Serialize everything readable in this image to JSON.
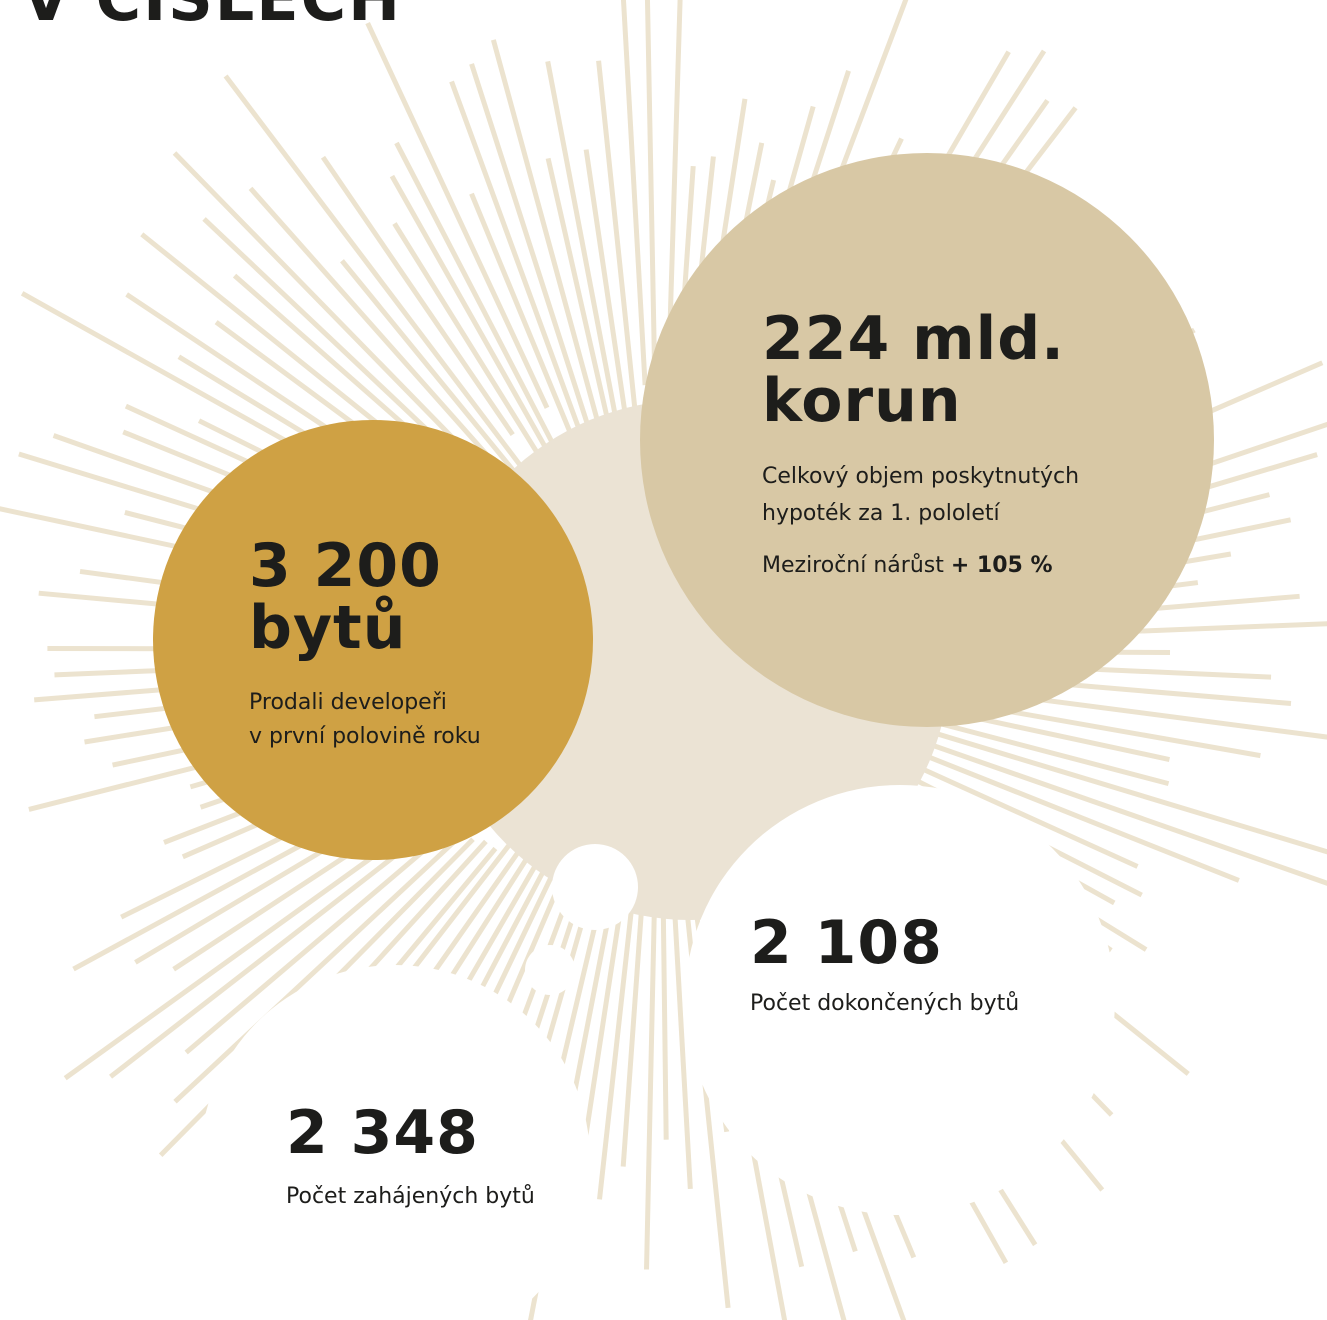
{
  "heading": "V ČÍSLECH",
  "stats": [
    {
      "value": "3 200",
      "unit": "bytů",
      "description": [
        "Prodali developeři",
        "v první polovině roku"
      ]
    },
    {
      "value": "224 mld.",
      "unit": "korun",
      "description": [
        "Celkový objem poskytnutých",
        "hypoték za 1. pololetí"
      ],
      "growth_label": "Meziroční nárůst",
      "growth_value": "+ 105 %"
    },
    {
      "value": "2 108",
      "description": [
        "Počet dokončených bytů"
      ]
    },
    {
      "value": "2 348",
      "description": [
        "Počet zahájených bytů"
      ]
    }
  ]
}
